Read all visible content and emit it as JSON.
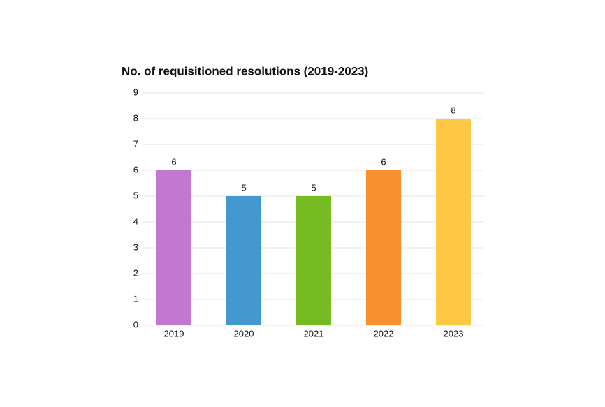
{
  "chart_data": {
    "type": "bar",
    "title": "No. of requisitioned resolutions (2019-2023)",
    "categories": [
      "2019",
      "2020",
      "2021",
      "2022",
      "2023"
    ],
    "values": [
      6,
      5,
      5,
      6,
      8
    ],
    "colors": [
      "#c278d0",
      "#4398cf",
      "#77bb22",
      "#f89030",
      "#fec844"
    ],
    "ylim": [
      0,
      9
    ],
    "yticks": [
      0,
      1,
      2,
      3,
      4,
      5,
      6,
      7,
      8,
      9
    ],
    "grid": true
  }
}
